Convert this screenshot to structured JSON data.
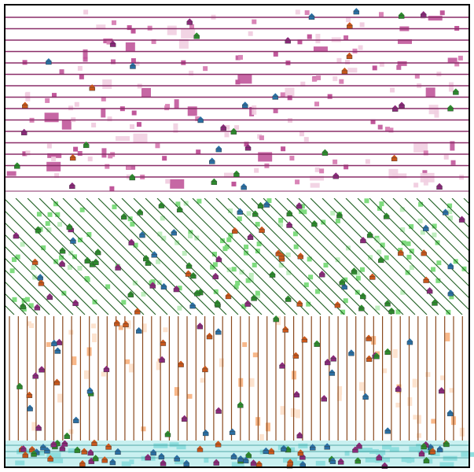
{
  "board": {
    "description_visible_text": "",
    "zones": [
      {
        "id": "pink-rows",
        "color": "#c0579a",
        "light": "#f1cfe1",
        "mid": "#d985b7",
        "dark": "#8a2d68",
        "pattern": "horizontal-lines"
      },
      {
        "id": "green-diagonal",
        "color": "#2f7d32",
        "light": "#bfeebf",
        "mid": "#7fdc7f",
        "dark": "#1f5e22",
        "pattern": "diagonal-lines"
      },
      {
        "id": "orange-columns",
        "color": "#8a4a1e",
        "light": "#fde3cf",
        "mid": "#f8b88a",
        "dark": "#6b3b17",
        "pattern": "vertical-lines"
      },
      {
        "id": "cyan-strip",
        "color": "#5fc7c7",
        "light": "#c9f0f0",
        "mid": "#8fdede",
        "dark": "#2c8f8f",
        "pattern": "horizontal-lines"
      }
    ],
    "units": {
      "blue": "#2a6fa3",
      "orange": "#c8571b",
      "green": "#2d8a2d",
      "purple": "#8a2a7a"
    },
    "frame_color": "#000000"
  }
}
